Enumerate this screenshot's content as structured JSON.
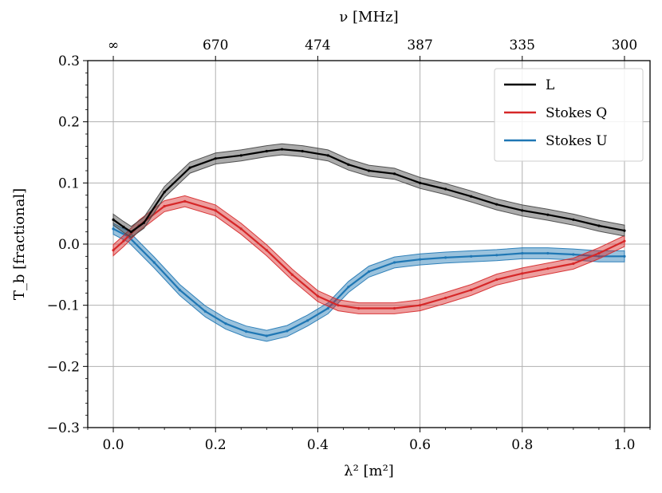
{
  "chart_data": {
    "type": "line",
    "xlabel": "λ² [m²]",
    "ylabel": "T_b [fractional]",
    "top_xlabel": "ν [MHz]",
    "xlim": [
      -0.05,
      1.05
    ],
    "ylim": [
      -0.3,
      0.3
    ],
    "grid": true,
    "legend_position": "top-right",
    "x_ticks": [
      0.0,
      0.2,
      0.4,
      0.6,
      0.8,
      1.0
    ],
    "x_tick_labels": [
      "0.0",
      "0.2",
      "0.4",
      "0.6",
      "0.8",
      "1.0"
    ],
    "y_ticks": [
      -0.3,
      -0.2,
      -0.1,
      0.0,
      0.1,
      0.2,
      0.3
    ],
    "y_tick_labels": [
      "−0.3",
      "−0.2",
      "−0.1",
      "0.0",
      "0.1",
      "0.2",
      "0.3"
    ],
    "top_ticks": [
      {
        "x": 0.0,
        "label": "∞"
      },
      {
        "x": 0.2,
        "label": "670"
      },
      {
        "x": 0.4,
        "label": "474"
      },
      {
        "x": 0.6,
        "label": "387"
      },
      {
        "x": 0.8,
        "label": "335"
      },
      {
        "x": 1.0,
        "label": "300"
      }
    ],
    "series": [
      {
        "name": "L",
        "italic_part": "L",
        "color": "#000000",
        "band_color": "#444444",
        "x": [
          0.0,
          0.02,
          0.035,
          0.06,
          0.1,
          0.15,
          0.2,
          0.25,
          0.3,
          0.33,
          0.37,
          0.42,
          0.46,
          0.5,
          0.55,
          0.6,
          0.65,
          0.7,
          0.75,
          0.8,
          0.85,
          0.9,
          0.95,
          1.0
        ],
        "values": [
          0.04,
          0.028,
          0.02,
          0.035,
          0.085,
          0.125,
          0.14,
          0.145,
          0.152,
          0.155,
          0.152,
          0.145,
          0.13,
          0.12,
          0.115,
          0.1,
          0.09,
          0.078,
          0.065,
          0.055,
          0.048,
          0.04,
          0.03,
          0.022
        ]
      },
      {
        "name": "Stokes Q",
        "italic_part": "Q",
        "color": "#d62728",
        "band_color": "#d62728",
        "x": [
          0.0,
          0.02,
          0.05,
          0.1,
          0.14,
          0.2,
          0.25,
          0.3,
          0.35,
          0.4,
          0.44,
          0.48,
          0.55,
          0.6,
          0.65,
          0.7,
          0.75,
          0.8,
          0.85,
          0.9,
          0.95,
          1.0
        ],
        "values": [
          -0.01,
          0.005,
          0.03,
          0.062,
          0.07,
          0.055,
          0.025,
          -0.01,
          -0.05,
          -0.085,
          -0.1,
          -0.105,
          -0.105,
          -0.1,
          -0.088,
          -0.075,
          -0.058,
          -0.048,
          -0.04,
          -0.032,
          -0.015,
          0.005
        ]
      },
      {
        "name": "Stokes U",
        "italic_part": "U",
        "color": "#1f77b4",
        "band_color": "#1f77b4",
        "x": [
          0.0,
          0.03,
          0.08,
          0.13,
          0.18,
          0.22,
          0.26,
          0.3,
          0.34,
          0.38,
          0.42,
          0.46,
          0.5,
          0.55,
          0.6,
          0.65,
          0.7,
          0.75,
          0.8,
          0.85,
          0.9,
          0.95,
          1.0
        ],
        "values": [
          0.025,
          0.012,
          -0.03,
          -0.075,
          -0.11,
          -0.13,
          -0.143,
          -0.15,
          -0.142,
          -0.125,
          -0.105,
          -0.07,
          -0.045,
          -0.03,
          -0.025,
          -0.022,
          -0.02,
          -0.018,
          -0.015,
          -0.015,
          -0.017,
          -0.02,
          -0.02
        ]
      }
    ]
  }
}
